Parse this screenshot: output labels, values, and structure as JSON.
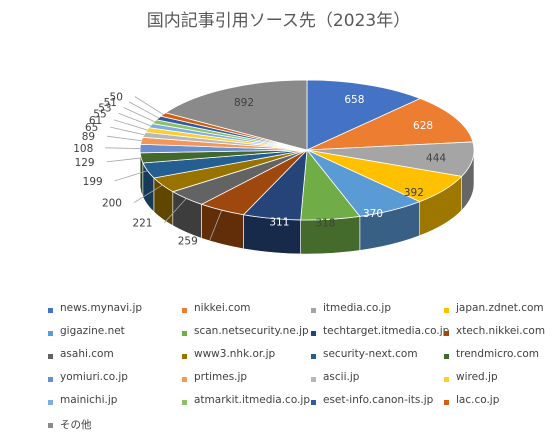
{
  "chart_data": {
    "type": "pie",
    "title": "国内記事引用ソース先（2023年）",
    "categories": [
      "news.mynavi.jp",
      "nikkei.com",
      "itmedia.co.jp",
      "japan.zdnet.com",
      "gigazine.net",
      "scan.netsecurity.ne.jp",
      "techtarget.itmedia.co.jp",
      "xtech.nikkei.com",
      "asahi.com",
      "www3.nhk.or.jp",
      "security-next.com",
      "trendmicro.com",
      "yomiuri.co.jp",
      "prtimes.jp",
      "ascii.jp",
      "wired.jp",
      "mainichi.jp",
      "atmarkit.itmedia.co.jp",
      "eset-info.canon-its.jp",
      "lac.co.jp",
      "その他"
    ],
    "values": [
      658,
      628,
      444,
      392,
      370,
      318,
      311,
      259,
      221,
      200,
      199,
      129,
      108,
      89,
      65,
      61,
      55,
      53,
      51,
      50,
      892
    ],
    "data_labels": [
      "658",
      "628",
      "444",
      "392",
      "370",
      "318",
      "311",
      "259",
      "221",
      "200",
      "199",
      "129",
      "108",
      "89",
      "65",
      "61",
      "55",
      "53",
      "51",
      "50",
      "892"
    ],
    "colors": [
      "#4472C4",
      "#ED7D31",
      "#A5A5A5",
      "#FFC000",
      "#5B9BD5",
      "#70AD47",
      "#264478",
      "#9E480E",
      "#636363",
      "#997300",
      "#255E91",
      "#43682B",
      "#698ED0",
      "#F1975A",
      "#B7B7B7",
      "#FFCD33",
      "#7CAFDD",
      "#8CC168",
      "#335AA1",
      "#D26012",
      "#8A8A8A"
    ],
    "legend_position": "bottom",
    "style": "3d-pie"
  }
}
